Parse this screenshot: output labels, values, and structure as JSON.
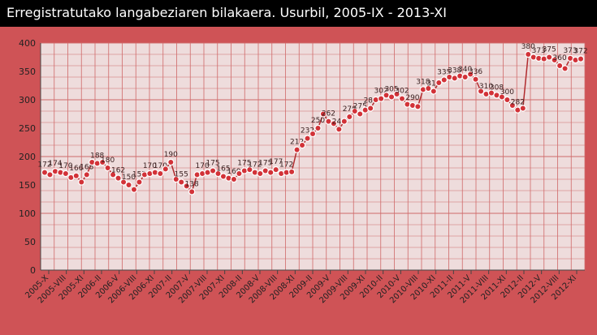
{
  "title": "Erregistratutako langabeziaren bilakaera. Usurbil, 2005-IX - 2013-XI",
  "colors": {
    "background": "#cf5356",
    "plot_area": "#eedcdc",
    "grid": "#cf6a6a",
    "line": "#b12b2e",
    "marker": "#d23238",
    "title_bar": "#000000"
  },
  "chart_data": {
    "type": "line",
    "ylim": [
      0,
      400
    ],
    "y_ticks": [
      0,
      50,
      100,
      150,
      200,
      250,
      300,
      350,
      400
    ],
    "grid": true,
    "x_tick_labels": [
      "2005-X",
      "2005-VIII",
      "2005-XI",
      "2006-II",
      "2006-V",
      "2006-VIII",
      "2006-XI",
      "2007-II",
      "2007-V",
      "2007-VIII",
      "2007-XI",
      "2008-II",
      "2008-V",
      "2008-VIII",
      "2008-XI",
      "2009-II",
      "2009-V",
      "2009-VIII",
      "2009-XI",
      "2010-II",
      "2010-V",
      "2010-VIII",
      "2010-XI",
      "2011-II",
      "2011-V",
      "2011-VIII",
      "2011-XI",
      "2012-II",
      "2012-V",
      "2012-VIII",
      "2012-XI"
    ],
    "values": [
      172,
      168,
      174,
      172,
      170,
      163,
      166,
      155,
      168,
      190,
      188,
      190,
      180,
      168,
      162,
      155,
      150,
      142,
      155,
      168,
      170,
      172,
      170,
      178,
      190,
      160,
      155,
      148,
      138,
      168,
      170,
      172,
      175,
      170,
      165,
      162,
      160,
      170,
      175,
      177,
      172,
      170,
      175,
      172,
      177,
      170,
      172,
      173,
      212,
      220,
      232,
      240,
      250,
      275,
      262,
      258,
      248,
      262,
      270,
      280,
      275,
      282,
      285,
      300,
      302,
      308,
      305,
      310,
      302,
      292,
      290,
      288,
      318,
      320,
      315,
      330,
      335,
      340,
      338,
      342,
      340,
      345,
      336,
      315,
      310,
      312,
      308,
      305,
      300,
      290,
      282,
      285,
      380,
      375,
      373,
      372,
      375,
      370,
      360,
      355,
      373,
      370,
      372
    ]
  }
}
